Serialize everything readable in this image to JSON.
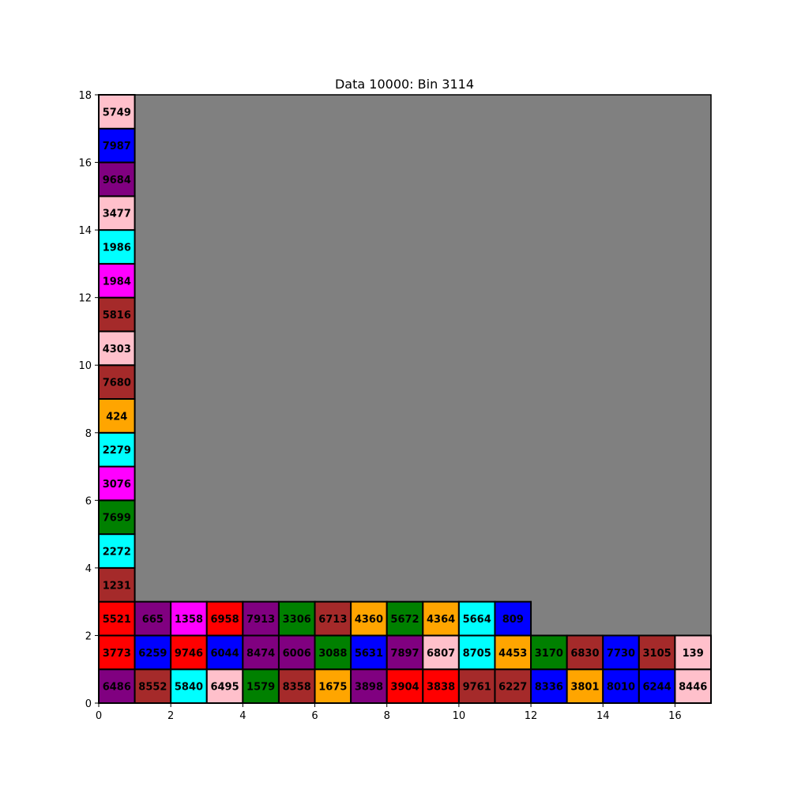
{
  "chart_data": {
    "type": "heatmap",
    "title": "Data 10000: Bin 3114",
    "xlabel": "",
    "ylabel": "",
    "xlim": [
      0,
      17
    ],
    "ylim": [
      0,
      18
    ],
    "x_ticks": [
      0,
      2,
      4,
      6,
      8,
      10,
      12,
      14,
      16
    ],
    "y_ticks": [
      0,
      2,
      4,
      6,
      8,
      10,
      12,
      14,
      16,
      18
    ],
    "grid": false,
    "background_color": "#808080",
    "colors": {
      "pink": "#ffc0cb",
      "blue": "#0000ff",
      "purple": "#800080",
      "cyan": "#00ffff",
      "magenta": "#ff00ff",
      "brown": "#a52a2a",
      "orange": "#ffa500",
      "green": "#008000",
      "red": "#ff0000"
    },
    "items": [
      {
        "x": 0,
        "y": 0,
        "w": 1,
        "h": 1,
        "label": "6486",
        "color": "purple"
      },
      {
        "x": 1,
        "y": 0,
        "w": 1,
        "h": 1,
        "label": "8552",
        "color": "brown"
      },
      {
        "x": 2,
        "y": 0,
        "w": 1,
        "h": 1,
        "label": "5840",
        "color": "cyan"
      },
      {
        "x": 3,
        "y": 0,
        "w": 1,
        "h": 1,
        "label": "6495",
        "color": "pink"
      },
      {
        "x": 4,
        "y": 0,
        "w": 1,
        "h": 1,
        "label": "1579",
        "color": "green"
      },
      {
        "x": 5,
        "y": 0,
        "w": 1,
        "h": 1,
        "label": "8358",
        "color": "brown"
      },
      {
        "x": 6,
        "y": 0,
        "w": 1,
        "h": 1,
        "label": "1675",
        "color": "orange"
      },
      {
        "x": 7,
        "y": 0,
        "w": 1,
        "h": 1,
        "label": "3898",
        "color": "purple"
      },
      {
        "x": 8,
        "y": 0,
        "w": 1,
        "h": 1,
        "label": "3904",
        "color": "red"
      },
      {
        "x": 9,
        "y": 0,
        "w": 1,
        "h": 1,
        "label": "3838",
        "color": "red"
      },
      {
        "x": 10,
        "y": 0,
        "w": 1,
        "h": 1,
        "label": "9761",
        "color": "brown"
      },
      {
        "x": 11,
        "y": 0,
        "w": 1,
        "h": 1,
        "label": "6227",
        "color": "brown"
      },
      {
        "x": 12,
        "y": 0,
        "w": 1,
        "h": 1,
        "label": "8336",
        "color": "blue"
      },
      {
        "x": 13,
        "y": 0,
        "w": 1,
        "h": 1,
        "label": "3801",
        "color": "orange"
      },
      {
        "x": 14,
        "y": 0,
        "w": 1,
        "h": 1,
        "label": "8010",
        "color": "blue"
      },
      {
        "x": 15,
        "y": 0,
        "w": 1,
        "h": 1,
        "label": "6244",
        "color": "blue"
      },
      {
        "x": 16,
        "y": 0,
        "w": 1,
        "h": 1,
        "label": "8446",
        "color": "pink"
      },
      {
        "x": 0,
        "y": 1,
        "w": 1,
        "h": 1,
        "label": "3773",
        "color": "red"
      },
      {
        "x": 1,
        "y": 1,
        "w": 1,
        "h": 1,
        "label": "6259",
        "color": "blue"
      },
      {
        "x": 2,
        "y": 1,
        "w": 1,
        "h": 1,
        "label": "9746",
        "color": "red"
      },
      {
        "x": 3,
        "y": 1,
        "w": 1,
        "h": 1,
        "label": "6044",
        "color": "blue"
      },
      {
        "x": 4,
        "y": 1,
        "w": 1,
        "h": 1,
        "label": "8474",
        "color": "purple"
      },
      {
        "x": 5,
        "y": 1,
        "w": 1,
        "h": 1,
        "label": "6006",
        "color": "purple"
      },
      {
        "x": 6,
        "y": 1,
        "w": 1,
        "h": 1,
        "label": "3088",
        "color": "green"
      },
      {
        "x": 7,
        "y": 1,
        "w": 1,
        "h": 1,
        "label": "5631",
        "color": "blue"
      },
      {
        "x": 8,
        "y": 1,
        "w": 1,
        "h": 1,
        "label": "7897",
        "color": "purple"
      },
      {
        "x": 9,
        "y": 1,
        "w": 1,
        "h": 1,
        "label": "6807",
        "color": "pink"
      },
      {
        "x": 10,
        "y": 1,
        "w": 1,
        "h": 1,
        "label": "8705",
        "color": "cyan"
      },
      {
        "x": 11,
        "y": 1,
        "w": 1,
        "h": 1,
        "label": "4453",
        "color": "orange"
      },
      {
        "x": 12,
        "y": 1,
        "w": 1,
        "h": 1,
        "label": "3170",
        "color": "green"
      },
      {
        "x": 13,
        "y": 1,
        "w": 1,
        "h": 1,
        "label": "6830",
        "color": "brown"
      },
      {
        "x": 14,
        "y": 1,
        "w": 1,
        "h": 1,
        "label": "7730",
        "color": "blue"
      },
      {
        "x": 15,
        "y": 1,
        "w": 1,
        "h": 1,
        "label": "3105",
        "color": "brown"
      },
      {
        "x": 16,
        "y": 1,
        "w": 1,
        "h": 1,
        "label": "139",
        "color": "pink"
      },
      {
        "x": 0,
        "y": 2,
        "w": 1,
        "h": 1,
        "label": "5521",
        "color": "red"
      },
      {
        "x": 1,
        "y": 2,
        "w": 1,
        "h": 1,
        "label": "665",
        "color": "purple"
      },
      {
        "x": 2,
        "y": 2,
        "w": 1,
        "h": 1,
        "label": "1358",
        "color": "magenta"
      },
      {
        "x": 3,
        "y": 2,
        "w": 1,
        "h": 1,
        "label": "6958",
        "color": "red"
      },
      {
        "x": 4,
        "y": 2,
        "w": 1,
        "h": 1,
        "label": "7913",
        "color": "purple"
      },
      {
        "x": 5,
        "y": 2,
        "w": 1,
        "h": 1,
        "label": "3306",
        "color": "green"
      },
      {
        "x": 6,
        "y": 2,
        "w": 1,
        "h": 1,
        "label": "6713",
        "color": "brown"
      },
      {
        "x": 7,
        "y": 2,
        "w": 1,
        "h": 1,
        "label": "4360",
        "color": "orange"
      },
      {
        "x": 8,
        "y": 2,
        "w": 1,
        "h": 1,
        "label": "5672",
        "color": "green"
      },
      {
        "x": 9,
        "y": 2,
        "w": 1,
        "h": 1,
        "label": "4364",
        "color": "orange"
      },
      {
        "x": 10,
        "y": 2,
        "w": 1,
        "h": 1,
        "label": "5664",
        "color": "cyan"
      },
      {
        "x": 11,
        "y": 2,
        "w": 1,
        "h": 1,
        "label": "809",
        "color": "blue"
      },
      {
        "x": 0,
        "y": 3,
        "w": 1,
        "h": 1,
        "label": "1231",
        "color": "brown"
      },
      {
        "x": 0,
        "y": 4,
        "w": 1,
        "h": 1,
        "label": "2272",
        "color": "cyan"
      },
      {
        "x": 0,
        "y": 5,
        "w": 1,
        "h": 1,
        "label": "7699",
        "color": "green"
      },
      {
        "x": 0,
        "y": 6,
        "w": 1,
        "h": 1,
        "label": "3076",
        "color": "magenta"
      },
      {
        "x": 0,
        "y": 7,
        "w": 1,
        "h": 1,
        "label": "2279",
        "color": "cyan"
      },
      {
        "x": 0,
        "y": 8,
        "w": 1,
        "h": 1,
        "label": "424",
        "color": "orange"
      },
      {
        "x": 0,
        "y": 9,
        "w": 1,
        "h": 1,
        "label": "7680",
        "color": "brown"
      },
      {
        "x": 0,
        "y": 10,
        "w": 1,
        "h": 1,
        "label": "4303",
        "color": "pink"
      },
      {
        "x": 0,
        "y": 11,
        "w": 1,
        "h": 1,
        "label": "5816",
        "color": "brown"
      },
      {
        "x": 0,
        "y": 12,
        "w": 1,
        "h": 1,
        "label": "1984",
        "color": "magenta"
      },
      {
        "x": 0,
        "y": 13,
        "w": 1,
        "h": 1,
        "label": "1986",
        "color": "cyan"
      },
      {
        "x": 0,
        "y": 14,
        "w": 1,
        "h": 1,
        "label": "3477",
        "color": "pink"
      },
      {
        "x": 0,
        "y": 15,
        "w": 1,
        "h": 1,
        "label": "9684",
        "color": "purple"
      },
      {
        "x": 0,
        "y": 16,
        "w": 1,
        "h": 1,
        "label": "7987",
        "color": "blue"
      },
      {
        "x": 0,
        "y": 17,
        "w": 1,
        "h": 1,
        "label": "5749",
        "color": "pink"
      }
    ]
  }
}
